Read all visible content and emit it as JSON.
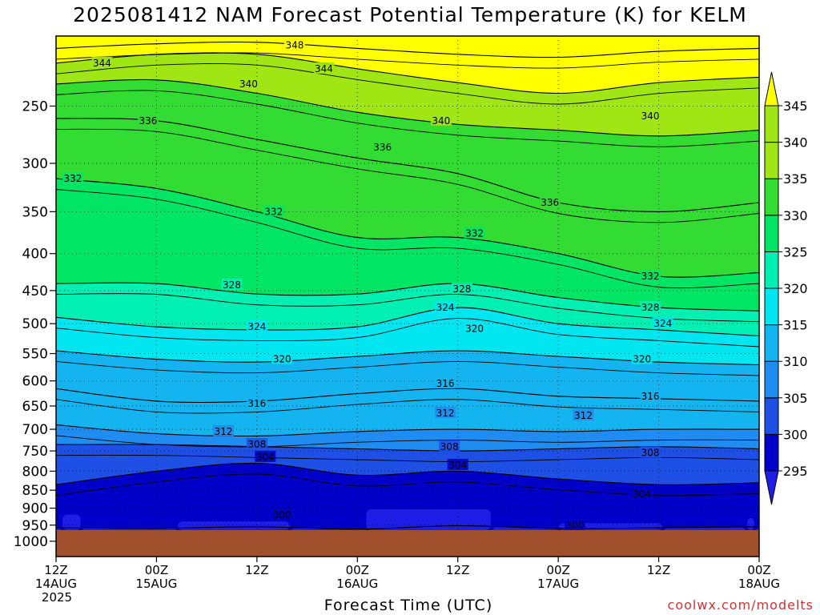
{
  "title": "2025081412 NAM Forecast Potential Temperature (K) for KELM",
  "credit": "coolwx.com/modelts",
  "chart_data": {
    "type": "heatmap",
    "title": "2025081412 NAM Forecast Potential Temperature (K) for KELM",
    "xlabel": "Forecast Time (UTC)",
    "ylabel": "",
    "y_axis": {
      "scale": "log-pressure",
      "reversed": true,
      "range": [
        1000,
        200
      ],
      "ticks": [
        250,
        300,
        350,
        400,
        450,
        500,
        550,
        600,
        650,
        700,
        750,
        800,
        850,
        900,
        950,
        1000
      ]
    },
    "x_axis": {
      "range_hours": [
        0,
        84
      ],
      "ticks": [
        {
          "hour": 0,
          "lines": [
            "12Z",
            "14AUG",
            "2025"
          ]
        },
        {
          "hour": 12,
          "lines": [
            "00Z",
            "15AUG"
          ]
        },
        {
          "hour": 24,
          "lines": [
            "12Z"
          ]
        },
        {
          "hour": 36,
          "lines": [
            "00Z",
            "16AUG"
          ]
        },
        {
          "hour": 48,
          "lines": [
            "12Z"
          ]
        },
        {
          "hour": 60,
          "lines": [
            "00Z",
            "17AUG"
          ]
        },
        {
          "hour": 72,
          "lines": [
            "12Z"
          ]
        },
        {
          "hour": 84,
          "lines": [
            "00Z",
            "18AUG"
          ]
        }
      ]
    },
    "grid": true,
    "colorbar": {
      "levels": [
        295,
        300,
        305,
        310,
        315,
        320,
        325,
        330,
        335,
        340,
        345
      ],
      "labels": [
        "295",
        "300",
        "305",
        "310",
        "315",
        "320",
        "325",
        "330",
        "335",
        "340",
        "345"
      ],
      "colors": [
        "#1e1ee6",
        "#0000c8",
        "#1e50e6",
        "#1e8cf0",
        "#14b4f0",
        "#00e6f0",
        "#00f0b4",
        "#00e664",
        "#32dc32",
        "#a0e614",
        "#ffff00"
      ],
      "extend": "both",
      "placement": "right"
    },
    "contours": [
      {
        "value": 300,
        "label": "300",
        "hours": [
          0,
          12,
          24,
          36,
          48,
          60,
          72,
          84
        ],
        "pressure": [
          958,
          960,
          955,
          962,
          952,
          960,
          958,
          955
        ]
      },
      {
        "value": 304,
        "label": "304",
        "hours": [
          0,
          12,
          24,
          36,
          48,
          60,
          72,
          84
        ],
        "pressure": [
          835,
          800,
          780,
          810,
          800,
          820,
          835,
          830
        ]
      },
      {
        "value": 308,
        "label": "308",
        "hours": [
          0,
          12,
          24,
          36,
          48,
          60,
          72,
          84
        ],
        "pressure": [
          735,
          735,
          740,
          745,
          750,
          745,
          740,
          745
        ]
      },
      {
        "value": 312,
        "label": "312",
        "hours": [
          0,
          12,
          24,
          36,
          48,
          60,
          72,
          84
        ],
        "pressure": [
          690,
          710,
          715,
          705,
          700,
          705,
          700,
          700
        ]
      },
      {
        "value": 316,
        "label": "316",
        "hours": [
          0,
          12,
          24,
          36,
          48,
          60,
          72,
          84
        ],
        "pressure": [
          615,
          640,
          640,
          625,
          615,
          630,
          635,
          640
        ]
      },
      {
        "value": 320,
        "label": "320",
        "hours": [
          0,
          12,
          24,
          36,
          48,
          60,
          72,
          84
        ],
        "pressure": [
          545,
          560,
          565,
          555,
          545,
          555,
          565,
          570
        ]
      },
      {
        "value": 324,
        "label": "324",
        "hours": [
          0,
          12,
          24,
          36,
          48,
          60,
          72,
          84
        ],
        "pressure": [
          490,
          505,
          510,
          505,
          475,
          500,
          510,
          520
        ]
      },
      {
        "value": 328,
        "label": "328",
        "hours": [
          0,
          12,
          24,
          36,
          48,
          60,
          72,
          84
        ],
        "pressure": [
          440,
          440,
          455,
          455,
          440,
          460,
          475,
          480
        ]
      },
      {
        "value": 332,
        "label": "332",
        "hours": [
          0,
          12,
          24,
          36,
          48,
          60,
          72,
          84
        ],
        "pressure": [
          315,
          325,
          350,
          380,
          380,
          400,
          430,
          425
        ]
      },
      {
        "value": 336,
        "label": "336",
        "hours": [
          0,
          12,
          24,
          36,
          48,
          60,
          72,
          84
        ],
        "pressure": [
          260,
          262,
          278,
          295,
          310,
          340,
          350,
          340
        ]
      },
      {
        "value": 340,
        "label": "340",
        "hours": [
          0,
          12,
          24,
          36,
          48,
          60,
          72,
          84
        ],
        "pressure": [
          233,
          230,
          240,
          255,
          265,
          270,
          275,
          270
        ]
      },
      {
        "value": 344,
        "label": "344",
        "hours": [
          0,
          12,
          24,
          36,
          48,
          60,
          72,
          84
        ],
        "pressure": [
          218,
          212,
          212,
          222,
          232,
          240,
          232,
          228
        ]
      },
      {
        "value": 348,
        "label": "348",
        "hours": [
          0,
          12,
          24,
          36,
          48,
          60,
          72,
          84
        ],
        "pressure": [
          208,
          205,
          204,
          208,
          212,
          214,
          210,
          208
        ]
      }
    ],
    "contour_labels": [
      {
        "text": "344",
        "hour": 5.5,
        "pressure": 218
      },
      {
        "text": "348",
        "hour": 28.5,
        "pressure": 206
      },
      {
        "text": "344",
        "hour": 32,
        "pressure": 222
      },
      {
        "text": "340",
        "hour": 23,
        "pressure": 233
      },
      {
        "text": "336",
        "hour": 11,
        "pressure": 262
      },
      {
        "text": "340",
        "hour": 46,
        "pressure": 262
      },
      {
        "text": "340",
        "hour": 71,
        "pressure": 258
      },
      {
        "text": "336",
        "hour": 39,
        "pressure": 285
      },
      {
        "text": "332",
        "hour": 2,
        "pressure": 315
      },
      {
        "text": "336",
        "hour": 59,
        "pressure": 340
      },
      {
        "text": "332",
        "hour": 26,
        "pressure": 350
      },
      {
        "text": "332",
        "hour": 50,
        "pressure": 375
      },
      {
        "text": "332",
        "hour": 71,
        "pressure": 430
      },
      {
        "text": "328",
        "hour": 21,
        "pressure": 442
      },
      {
        "text": "328",
        "hour": 48.5,
        "pressure": 448
      },
      {
        "text": "328",
        "hour": 71,
        "pressure": 475
      },
      {
        "text": "324",
        "hour": 46.5,
        "pressure": 475
      },
      {
        "text": "324",
        "hour": 24,
        "pressure": 505
      },
      {
        "text": "324",
        "hour": 72.5,
        "pressure": 500
      },
      {
        "text": "320",
        "hour": 50,
        "pressure": 508
      },
      {
        "text": "320",
        "hour": 27,
        "pressure": 560
      },
      {
        "text": "320",
        "hour": 70,
        "pressure": 560
      },
      {
        "text": "316",
        "hour": 46.5,
        "pressure": 605
      },
      {
        "text": "316",
        "hour": 24,
        "pressure": 645
      },
      {
        "text": "316",
        "hour": 71,
        "pressure": 630
      },
      {
        "text": "312",
        "hour": 46.5,
        "pressure": 665
      },
      {
        "text": "312",
        "hour": 63,
        "pressure": 670
      },
      {
        "text": "312",
        "hour": 20,
        "pressure": 705
      },
      {
        "text": "308",
        "hour": 24,
        "pressure": 735
      },
      {
        "text": "308",
        "hour": 47,
        "pressure": 740
      },
      {
        "text": "308",
        "hour": 71,
        "pressure": 755
      },
      {
        "text": "304",
        "hour": 25,
        "pressure": 765
      },
      {
        "text": "304",
        "hour": 48,
        "pressure": 785
      },
      {
        "text": "304",
        "hour": 70,
        "pressure": 860
      },
      {
        "text": "300",
        "hour": 27,
        "pressure": 920
      },
      {
        "text": "300",
        "hour": 62,
        "pressure": 950
      }
    ],
    "cold_pools": [
      {
        "hour_start": 0.2,
        "hour_end": 3.5,
        "top_pressure": 900
      },
      {
        "hour_start": 14,
        "hour_end": 28.5,
        "top_pressure": 920
      },
      {
        "hour_start": 36.5,
        "hour_end": 52.5,
        "top_pressure": 885
      },
      {
        "hour_start": 59.5,
        "hour_end": 73,
        "top_pressure": 925
      },
      {
        "hour_start": 82,
        "hour_end": 84,
        "top_pressure": 910
      }
    ],
    "ground": {
      "top_pressure": 965,
      "color": "#a0502d"
    }
  }
}
